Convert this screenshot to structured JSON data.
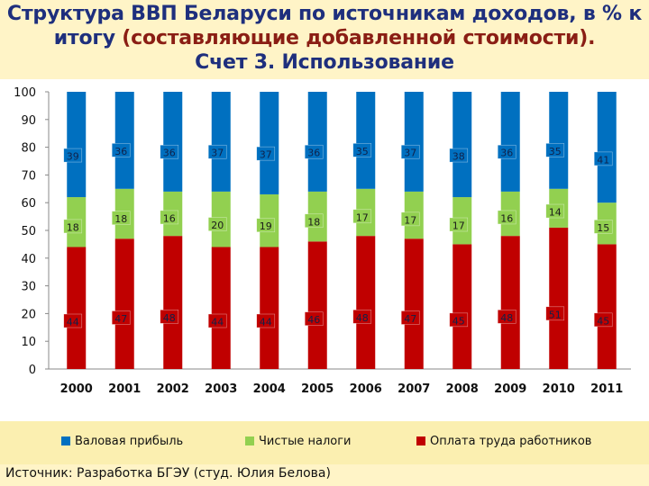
{
  "title": {
    "line1": "Структура ВВП Беларуси по источникам доходов, в % к",
    "line2_pre": "итогу ",
    "line2_hl": "(составляющие добавленной стоимости).",
    "line3": "Счет 3. Использование"
  },
  "chart_data": {
    "type": "bar",
    "stacked": true,
    "categories": [
      "2000",
      "2001",
      "2002",
      "2003",
      "2004",
      "2005",
      "2006",
      "2007",
      "2008",
      "2009",
      "2010",
      "2011"
    ],
    "series": [
      {
        "name": "Оплата труда работников",
        "color": "#c00000",
        "values": [
          44,
          47,
          48,
          44,
          44,
          46,
          48,
          47,
          45,
          48,
          51,
          45
        ]
      },
      {
        "name": "Чистые налоги",
        "color": "#92d050",
        "values": [
          18,
          18,
          16,
          20,
          19,
          18,
          17,
          17,
          17,
          16,
          14,
          15
        ]
      },
      {
        "name": "Валовая прибыль",
        "color": "#0070c0",
        "values": [
          39,
          36,
          36,
          37,
          37,
          36,
          35,
          37,
          38,
          36,
          35,
          41
        ]
      }
    ],
    "labels": {
      "Оплата труда работников": [
        "44",
        "47",
        "48",
        "44",
        "44",
        "46",
        "48",
        "47",
        "45",
        "48",
        "51",
        "45"
      ],
      "Чистые налоги": [
        "18",
        "18",
        "16",
        "20",
        "19",
        "18",
        "17",
        "17",
        "17",
        "16",
        "14",
        "15"
      ],
      "Валовая прибыль": [
        "39",
        "36",
        "36",
        "37",
        "37",
        "36",
        "35",
        "37",
        "38",
        "36",
        "35",
        "41"
      ]
    },
    "yticks": [
      "0",
      "10",
      "20",
      "30",
      "40",
      "50",
      "60",
      "70",
      "80",
      "90",
      "100"
    ],
    "ylim": [
      0,
      100
    ],
    "legend_position": "bottom"
  },
  "source": "Источник: Разработка БГЭУ (студ. Юлия Белова)"
}
